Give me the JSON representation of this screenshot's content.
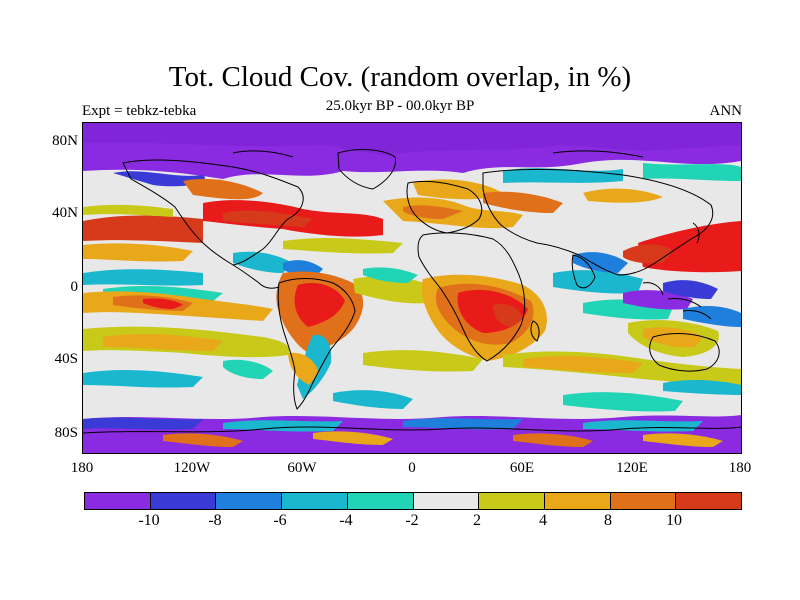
{
  "header": {
    "title": "Tot. Cloud Cov. (random overlap, in %)",
    "subtitle": "25.0kyr BP - 00.0kyr BP",
    "left_label": "Expt = tebkz-tebka",
    "right_label": "ANN"
  },
  "axes": {
    "y_labels": [
      "80N",
      "40N",
      "0",
      "40S",
      "80S"
    ],
    "x_labels": [
      "180",
      "120W",
      "60W",
      "0",
      "60E",
      "120E",
      "180"
    ]
  },
  "colorbar": {
    "colors": [
      "#8a2be2",
      "#3a3ad6",
      "#1e7fdc",
      "#1ab7cf",
      "#22d4b6",
      "#e8e8e8",
      "#c9c91a",
      "#e8a81a",
      "#e0701a",
      "#d63a1a",
      "#e81a1a"
    ],
    "labels": [
      "-10",
      "-8",
      "-6",
      "-4",
      "-2",
      "2",
      "4",
      "8",
      "10"
    ]
  },
  "palette": {
    "purple": "#8a2be2",
    "blue": "#3a3ad6",
    "midblue": "#1e7fdc",
    "cyan": "#1ab7cf",
    "teal": "#22d4b6",
    "neutral": "#e8e8e8",
    "yellow": "#c9c91a",
    "orange": "#e8a81a",
    "darkorange": "#e0701a",
    "red": "#e81a1a"
  }
}
